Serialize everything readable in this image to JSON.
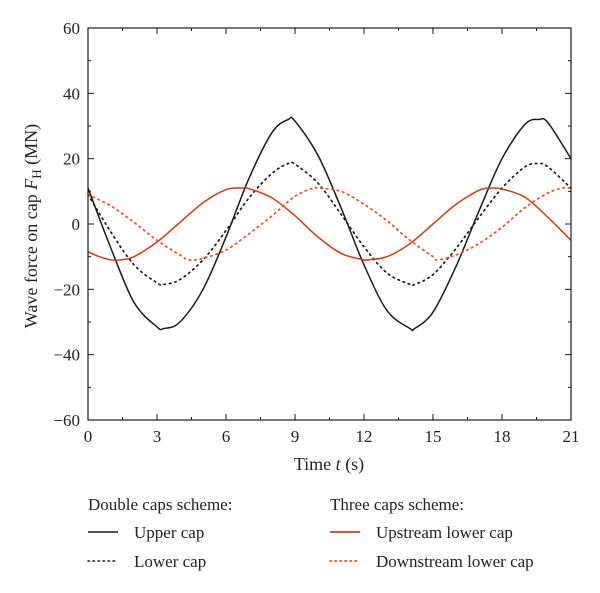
{
  "chart_data": {
    "type": "line",
    "xlabel_prefix": "Time ",
    "xlabel_var": "t",
    "xlabel_unit": " (s)",
    "ylabel_main": "Wave force on cap ",
    "ylabel_var": "F",
    "ylabel_sub": "H",
    "ylabel_unit": " (MN)",
    "xlim": [
      0,
      21
    ],
    "ylim": [
      -60,
      60
    ],
    "xticks": [
      0,
      3,
      6,
      9,
      12,
      15,
      18,
      21
    ],
    "yticks": [
      -60,
      -40,
      -20,
      0,
      20,
      40,
      60
    ],
    "grid": false,
    "legend": {
      "group_1_title": "Double caps scheme:",
      "group_2_title": "Three caps scheme:"
    },
    "series": [
      {
        "name": "Upper cap",
        "color": "#1a1a1a",
        "style": "solid",
        "x": [
          0,
          1,
          2,
          3,
          3.3,
          4,
          5,
          6,
          7,
          8,
          8.7,
          9,
          10,
          11,
          12,
          13,
          14,
          14.2,
          15,
          16,
          17,
          18,
          19,
          19.6,
          20,
          21
        ],
        "y": [
          11,
          -7.5,
          -24,
          -31.5,
          -32,
          -30,
          -20,
          -4,
          14,
          28,
          32,
          31.5,
          21,
          5,
          -12.5,
          -26.5,
          -32,
          -32,
          -27,
          -13,
          4,
          20,
          30.5,
          32,
          31,
          20
        ]
      },
      {
        "name": "Lower cap",
        "color": "#1a1a1a",
        "style": "dotted",
        "x": [
          0,
          1,
          2,
          3,
          3.3,
          4,
          5,
          6,
          7,
          8,
          8.7,
          9,
          10,
          11,
          12,
          13,
          14,
          14.2,
          15,
          16,
          17,
          18,
          19,
          19.6,
          20,
          21
        ],
        "y": [
          9,
          -2.5,
          -12.5,
          -18,
          -18.5,
          -17,
          -11,
          -2,
          8,
          15.5,
          18.5,
          18.3,
          12.5,
          3,
          -7,
          -15,
          -18.5,
          -18.5,
          -15.5,
          -7.5,
          2,
          11,
          17.5,
          18.5,
          17.5,
          11
        ]
      },
      {
        "name": "Upstream lower cap",
        "color": "#cc3d10",
        "style": "solid",
        "x": [
          0,
          0.5,
          1,
          1.4,
          2,
          3,
          4,
          5,
          6,
          6.7,
          7,
          8,
          9,
          10,
          11,
          12,
          12.1,
          13,
          14,
          15,
          16,
          17,
          17.5,
          18,
          19,
          20,
          21
        ],
        "y": [
          -8.5,
          -10,
          -11,
          -11,
          -10,
          -5.5,
          0.5,
          6.5,
          10.5,
          11,
          10.8,
          8,
          2.5,
          -4,
          -9,
          -11,
          -11,
          -10,
          -6,
          0,
          6,
          10.3,
          11,
          10.7,
          8.2,
          2,
          -5
        ]
      },
      {
        "name": "Downstream lower cap",
        "color": "#e5502a",
        "style": "dotted",
        "x": [
          0,
          1,
          2,
          3,
          4,
          4.4,
          5,
          6,
          7,
          8,
          9,
          9.8,
          10,
          11,
          12,
          13,
          14,
          15,
          15.2,
          16,
          17,
          18,
          19,
          20,
          20.6,
          21
        ],
        "y": [
          9,
          5.5,
          0.5,
          -5,
          -9.5,
          -11,
          -10.5,
          -8,
          -3,
          2.5,
          8.5,
          11,
          11,
          10,
          6,
          1,
          -5,
          -10,
          -11,
          -9.5,
          -6,
          -1,
          5,
          9.5,
          11,
          11
        ]
      }
    ]
  }
}
